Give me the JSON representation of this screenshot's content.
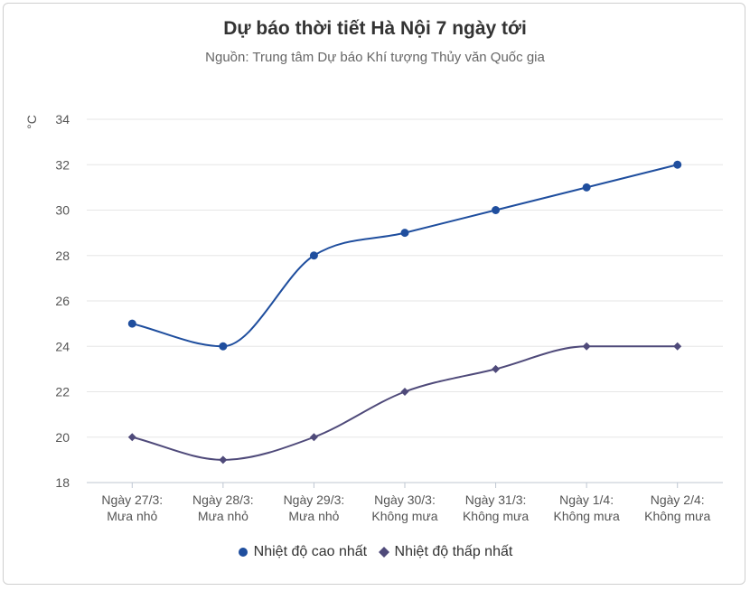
{
  "chart_data": {
    "type": "line",
    "title": "Dự báo thời tiết Hà Nội 7 ngày tới",
    "subtitle": "Nguồn: Trung tâm Dự báo Khí tượng Thủy văn Quốc gia",
    "ylabel": "°C",
    "xlabel": "",
    "ylim": [
      18,
      34
    ],
    "yticks": [
      18,
      20,
      22,
      24,
      26,
      28,
      30,
      32,
      34
    ],
    "grid": true,
    "legend_position": "bottom",
    "categories": [
      [
        "Ngày 27/3:",
        "Mưa nhỏ"
      ],
      [
        "Ngày 28/3:",
        "Mưa nhỏ"
      ],
      [
        "Ngày 29/3:",
        "Mưa nhỏ"
      ],
      [
        "Ngày 30/3:",
        "Không mưa"
      ],
      [
        "Ngày 31/3:",
        "Không mưa"
      ],
      [
        "Ngày 1/4:",
        "Không mưa"
      ],
      [
        "Ngày 2/4:",
        "Không mưa"
      ]
    ],
    "series": [
      {
        "name": "Nhiệt độ cao nhất",
        "values": [
          25,
          24,
          28,
          29,
          30,
          31,
          32
        ],
        "color": "#1f4e9e",
        "marker": "circle"
      },
      {
        "name": "Nhiệt độ thấp nhất",
        "values": [
          20,
          19,
          20,
          22,
          23,
          24,
          24
        ],
        "color": "#4f4a7a",
        "marker": "diamond"
      }
    ]
  }
}
